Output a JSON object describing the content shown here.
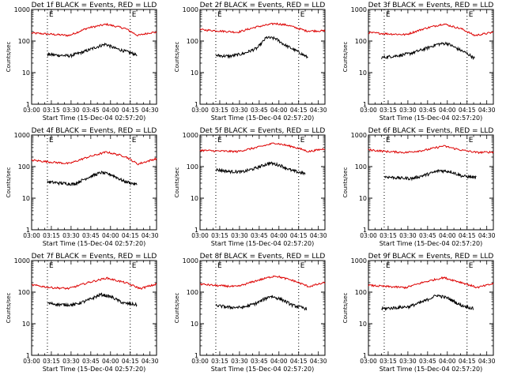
{
  "chart_data": [
    {
      "type": "line",
      "title": "Det 1f BLACK = Events, RED = LLD",
      "xlabel": "Start Time (15-Dec-04 02:57:20)",
      "ylabel": "Counts/sec",
      "yscale": "log",
      "ylim": [
        1,
        1000
      ],
      "xlim": [
        "03:00",
        "04:35"
      ],
      "x_ticks": [
        "03:00",
        "03:15",
        "03:30",
        "03:45",
        "04:00",
        "04:15",
        "04:30"
      ],
      "y_ticks": [
        "1",
        "10",
        "100",
        "1000"
      ],
      "markers": [
        {
          "time": "03:12",
          "label": "E"
        },
        {
          "time": "04:15",
          "label": "E"
        }
      ],
      "series": [
        {
          "color": "#dd0000",
          "start": "03:00",
          "end": "04:35",
          "points": [
            [
              0,
              180
            ],
            [
              15,
              165
            ],
            [
              30,
              150
            ],
            [
              45,
              260
            ],
            [
              60,
              340
            ],
            [
              75,
              250
            ],
            [
              85,
              150
            ],
            [
              95,
              185
            ],
            [
              100,
              190
            ]
          ]
        },
        {
          "color": "#000000",
          "start": "03:12",
          "end": "04:20",
          "points": [
            [
              0,
              38
            ],
            [
              10,
              36
            ],
            [
              25,
              34
            ],
            [
              40,
              45
            ],
            [
              55,
              65
            ],
            [
              65,
              80
            ],
            [
              75,
              60
            ],
            [
              90,
              45
            ],
            [
              100,
              37
            ]
          ]
        }
      ]
    },
    {
      "type": "line",
      "title": "Det 2f BLACK = Events, RED = LLD",
      "xlabel": "Start Time (15-Dec-04 02:57:20)",
      "ylabel": "Counts/sec",
      "yscale": "log",
      "ylim": [
        1,
        1000
      ],
      "xlim": [
        "03:00",
        "04:35"
      ],
      "x_ticks": [
        "03:00",
        "03:15",
        "03:30",
        "03:45",
        "04:00",
        "04:15",
        "04:30"
      ],
      "y_ticks": [
        "1",
        "10",
        "100",
        "1000"
      ],
      "markers": [
        {
          "time": "03:12",
          "label": "E"
        },
        {
          "time": "04:15",
          "label": "E"
        }
      ],
      "series": [
        {
          "color": "#dd0000",
          "start": "03:00",
          "end": "04:35",
          "points": [
            [
              0,
              230
            ],
            [
              15,
              210
            ],
            [
              30,
              190
            ],
            [
              45,
              280
            ],
            [
              60,
              360
            ],
            [
              70,
              320
            ],
            [
              85,
              210
            ],
            [
              100,
              210
            ]
          ]
        },
        {
          "color": "#000000",
          "start": "03:12",
          "end": "04:22",
          "points": [
            [
              0,
              35
            ],
            [
              15,
              33
            ],
            [
              30,
              40
            ],
            [
              45,
              60
            ],
            [
              55,
              130
            ],
            [
              65,
              120
            ],
            [
              75,
              75
            ],
            [
              90,
              45
            ],
            [
              100,
              30
            ]
          ]
        }
      ]
    },
    {
      "type": "line",
      "title": "Det 3f BLACK = Events, RED = LLD",
      "xlabel": "Start Time (15-Dec-04 02:57:20)",
      "ylabel": "Counts/sec",
      "yscale": "log",
      "ylim": [
        1,
        1000
      ],
      "xlim": [
        "03:00",
        "04:35"
      ],
      "x_ticks": [
        "03:00",
        "03:15",
        "03:30",
        "03:45",
        "04:00",
        "04:15",
        "04:30"
      ],
      "y_ticks": [
        "1",
        "10",
        "100",
        "1000"
      ],
      "markers": [
        {
          "time": "03:12",
          "label": "E"
        },
        {
          "time": "04:15",
          "label": "E"
        }
      ],
      "series": [
        {
          "color": "#dd0000",
          "start": "03:00",
          "end": "04:35",
          "points": [
            [
              0,
              185
            ],
            [
              15,
              170
            ],
            [
              30,
              160
            ],
            [
              45,
              250
            ],
            [
              60,
              350
            ],
            [
              75,
              240
            ],
            [
              85,
              150
            ],
            [
              100,
              190
            ]
          ]
        },
        {
          "color": "#000000",
          "start": "03:10",
          "end": "04:21",
          "points": [
            [
              0,
              30
            ],
            [
              15,
              34
            ],
            [
              30,
              40
            ],
            [
              45,
              55
            ],
            [
              60,
              80
            ],
            [
              70,
              85
            ],
            [
              80,
              60
            ],
            [
              92,
              40
            ],
            [
              100,
              28
            ]
          ]
        }
      ]
    },
    {
      "type": "line",
      "title": "Det 4f BLACK = Events, RED = LLD",
      "xlabel": "Start Time (15-Dec-04 02:57:20)",
      "ylabel": "Counts/sec",
      "yscale": "log",
      "ylim": [
        1,
        1000
      ],
      "xlim": [
        "03:00",
        "04:35"
      ],
      "x_ticks": [
        "03:00",
        "03:15",
        "03:30",
        "03:45",
        "04:00",
        "04:15",
        "04:30"
      ],
      "y_ticks": [
        "1",
        "10",
        "100",
        "1000"
      ],
      "markers": [
        {
          "time": "03:12",
          "label": "E"
        },
        {
          "time": "04:15",
          "label": "E"
        }
      ],
      "series": [
        {
          "color": "#dd0000",
          "start": "03:00",
          "end": "04:35",
          "points": [
            [
              0,
              160
            ],
            [
              15,
              140
            ],
            [
              30,
              125
            ],
            [
              45,
              200
            ],
            [
              60,
              290
            ],
            [
              75,
              210
            ],
            [
              85,
              120
            ],
            [
              100,
              180
            ]
          ]
        },
        {
          "color": "#000000",
          "start": "03:12",
          "end": "04:20",
          "points": [
            [
              0,
              33
            ],
            [
              15,
              30
            ],
            [
              30,
              28
            ],
            [
              45,
              45
            ],
            [
              60,
              65
            ],
            [
              72,
              55
            ],
            [
              85,
              35
            ],
            [
              100,
              27
            ]
          ]
        }
      ]
    },
    {
      "type": "line",
      "title": "Det 5f BLACK = Events, RED = LLD",
      "xlabel": "Start Time (15-Dec-04 02:57:20)",
      "ylabel": "Counts/sec",
      "yscale": "log",
      "ylim": [
        1,
        1000
      ],
      "xlim": [
        "03:00",
        "04:35"
      ],
      "x_ticks": [
        "03:00",
        "03:15",
        "03:30",
        "03:45",
        "04:00",
        "04:15",
        "04:30"
      ],
      "y_ticks": [
        "1",
        "10",
        "100",
        "1000"
      ],
      "markers": [
        {
          "time": "03:12",
          "label": "E"
        },
        {
          "time": "04:15",
          "label": "E"
        }
      ],
      "series": [
        {
          "color": "#dd0000",
          "start": "03:00",
          "end": "04:35",
          "points": [
            [
              0,
              330
            ],
            [
              15,
              310
            ],
            [
              30,
              300
            ],
            [
              45,
              400
            ],
            [
              60,
              560
            ],
            [
              75,
              420
            ],
            [
              87,
              300
            ],
            [
              100,
              370
            ]
          ]
        },
        {
          "color": "#000000",
          "start": "03:12",
          "end": "04:20",
          "points": [
            [
              0,
              80
            ],
            [
              15,
              70
            ],
            [
              30,
              68
            ],
            [
              45,
              90
            ],
            [
              60,
              130
            ],
            [
              72,
              110
            ],
            [
              85,
              75
            ],
            [
              100,
              60
            ]
          ]
        }
      ]
    },
    {
      "type": "line",
      "title": "Det 6f BLACK = Events, RED = LLD",
      "xlabel": "Start Time (15-Dec-04 02:57:20)",
      "ylabel": "Counts/sec",
      "yscale": "log",
      "ylim": [
        1,
        1000
      ],
      "xlim": [
        "03:00",
        "04:35"
      ],
      "x_ticks": [
        "03:00",
        "03:15",
        "03:30",
        "03:45",
        "04:00",
        "04:15",
        "04:30"
      ],
      "y_ticks": [
        "1",
        "10",
        "100",
        "1000"
      ],
      "markers": [
        {
          "time": "03:12",
          "label": "E"
        },
        {
          "time": "04:15",
          "label": "E"
        }
      ],
      "series": [
        {
          "color": "#dd0000",
          "start": "03:00",
          "end": "04:35",
          "points": [
            [
              0,
              340
            ],
            [
              15,
              300
            ],
            [
              30,
              280
            ],
            [
              45,
              330
            ],
            [
              60,
              450
            ],
            [
              75,
              330
            ],
            [
              87,
              280
            ],
            [
              100,
              290
            ]
          ]
        },
        {
          "color": "#000000",
          "start": "03:12",
          "end": "04:22",
          "points": [
            [
              0,
              48
            ],
            [
              15,
              44
            ],
            [
              30,
              42
            ],
            [
              45,
              55
            ],
            [
              60,
              75
            ],
            [
              72,
              70
            ],
            [
              85,
              50
            ],
            [
              100,
              45
            ]
          ]
        }
      ]
    },
    {
      "type": "line",
      "title": "Det 7f BLACK = Events, RED = LLD",
      "xlabel": "Start Time (15-Dec-04 02:57:20)",
      "ylabel": "Counts/sec",
      "yscale": "log",
      "ylim": [
        1,
        1000
      ],
      "xlim": [
        "03:00",
        "04:35"
      ],
      "x_ticks": [
        "03:00",
        "03:15",
        "03:30",
        "03:45",
        "04:00",
        "04:15",
        "04:30"
      ],
      "y_ticks": [
        "1",
        "10",
        "100",
        "1000"
      ],
      "markers": [
        {
          "time": "03:12",
          "label": "E"
        },
        {
          "time": "04:15",
          "label": "E"
        }
      ],
      "series": [
        {
          "color": "#dd0000",
          "start": "03:00",
          "end": "04:35",
          "points": [
            [
              0,
              170
            ],
            [
              15,
              140
            ],
            [
              30,
              130
            ],
            [
              45,
              200
            ],
            [
              60,
              280
            ],
            [
              75,
              200
            ],
            [
              87,
              130
            ],
            [
              100,
              180
            ]
          ]
        },
        {
          "color": "#000000",
          "start": "03:12",
          "end": "04:20",
          "points": [
            [
              0,
              45
            ],
            [
              15,
              40
            ],
            [
              30,
              40
            ],
            [
              45,
              55
            ],
            [
              60,
              85
            ],
            [
              72,
              70
            ],
            [
              85,
              45
            ],
            [
              100,
              40
            ]
          ]
        }
      ]
    },
    {
      "type": "line",
      "title": "Det 8f BLACK = Events, RED = LLD",
      "xlabel": "Start Time (15-Dec-04 02:57:20)",
      "ylabel": "Counts/sec",
      "yscale": "log",
      "ylim": [
        1,
        1000
      ],
      "xlim": [
        "03:00",
        "04:35"
      ],
      "x_ticks": [
        "03:00",
        "03:15",
        "03:30",
        "03:45",
        "04:00",
        "04:15",
        "04:30"
      ],
      "y_ticks": [
        "1",
        "10",
        "100",
        "1000"
      ],
      "markers": [
        {
          "time": "03:12",
          "label": "E"
        },
        {
          "time": "04:15",
          "label": "E"
        }
      ],
      "series": [
        {
          "color": "#dd0000",
          "start": "03:00",
          "end": "04:35",
          "points": [
            [
              0,
              180
            ],
            [
              15,
              160
            ],
            [
              30,
              150
            ],
            [
              45,
              230
            ],
            [
              60,
              330
            ],
            [
              75,
              230
            ],
            [
              87,
              150
            ],
            [
              100,
              200
            ]
          ]
        },
        {
          "color": "#000000",
          "start": "03:12",
          "end": "04:21",
          "points": [
            [
              0,
              38
            ],
            [
              15,
              33
            ],
            [
              30,
              33
            ],
            [
              45,
              45
            ],
            [
              60,
              75
            ],
            [
              72,
              60
            ],
            [
              85,
              38
            ],
            [
              100,
              30
            ]
          ]
        }
      ]
    },
    {
      "type": "line",
      "title": "Det 9f BLACK = Events, RED = LLD",
      "xlabel": "Start Time (15-Dec-04 02:57:20)",
      "ylabel": "Counts/sec",
      "yscale": "log",
      "ylim": [
        1,
        1000
      ],
      "xlim": [
        "03:00",
        "04:35"
      ],
      "x_ticks": [
        "03:00",
        "03:15",
        "03:30",
        "03:45",
        "04:00",
        "04:15",
        "04:30"
      ],
      "y_ticks": [
        "1",
        "10",
        "100",
        "1000"
      ],
      "markers": [
        {
          "time": "03:12",
          "label": "E"
        },
        {
          "time": "04:15",
          "label": "E"
        }
      ],
      "series": [
        {
          "color": "#dd0000",
          "start": "03:00",
          "end": "04:35",
          "points": [
            [
              0,
              165
            ],
            [
              15,
              150
            ],
            [
              30,
              140
            ],
            [
              45,
              210
            ],
            [
              60,
              290
            ],
            [
              75,
              200
            ],
            [
              87,
              140
            ],
            [
              100,
              185
            ]
          ]
        },
        {
          "color": "#000000",
          "start": "03:10",
          "end": "04:20",
          "points": [
            [
              0,
              30
            ],
            [
              15,
              32
            ],
            [
              30,
              35
            ],
            [
              45,
              50
            ],
            [
              60,
              80
            ],
            [
              72,
              65
            ],
            [
              85,
              40
            ],
            [
              100,
              30
            ]
          ]
        }
      ]
    }
  ]
}
